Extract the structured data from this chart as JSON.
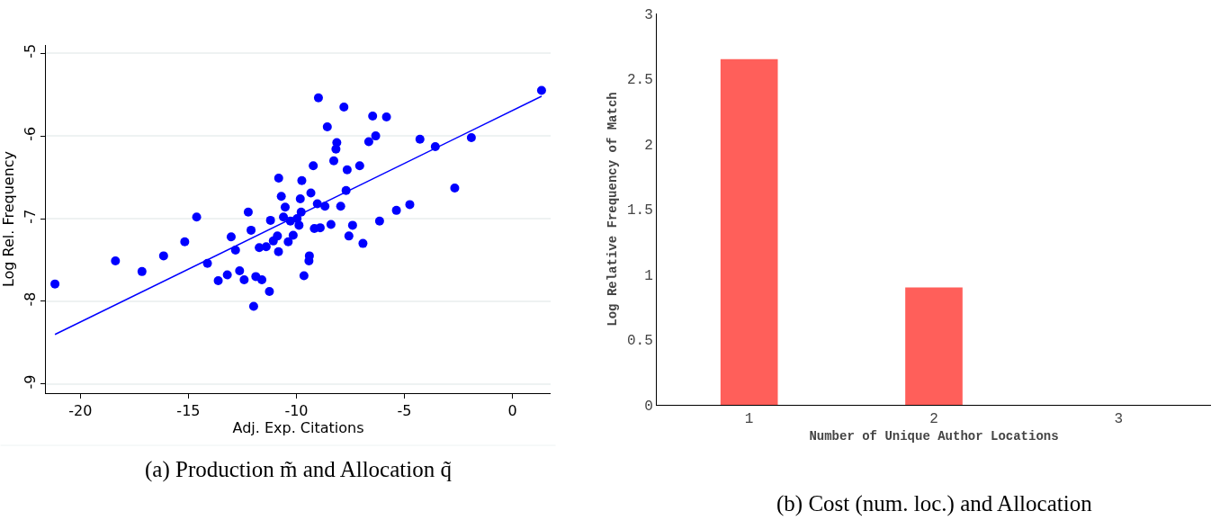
{
  "chart_data": [
    {
      "type": "scatter",
      "title": "(a) Production m̃ and Allocation q̃",
      "xlabel": "Adj. Exp. Citations",
      "ylabel": "Log Rel. Frequency",
      "xlim": [
        -21.6,
        1.77
      ],
      "ylim": [
        -9.11,
        -4.9
      ],
      "xticks": [
        -20,
        -15,
        -10,
        -5,
        0
      ],
      "yticks": [
        -9,
        -8,
        -7,
        -6,
        -5
      ],
      "grid": "y",
      "marker": "circle",
      "series": [
        {
          "color": "#0000ff",
          "x": [
            -21.18,
            -18.38,
            -17.15,
            -16.15,
            -15.17,
            -14.62,
            -14.12,
            -13.62,
            -13.2,
            -13.02,
            -12.82,
            -12.63,
            -12.42,
            -12.23,
            -12.1,
            -11.98,
            -11.88,
            -11.72,
            -11.6,
            -11.4,
            -11.25,
            -11.2,
            -11.07,
            -10.88,
            -10.83,
            -10.82,
            -10.7,
            -10.6,
            -10.52,
            -10.38,
            -10.28,
            -10.15,
            -9.97,
            -9.88,
            -9.82,
            -9.78,
            -9.75,
            -9.65,
            -9.42,
            -9.4,
            -9.33,
            -9.22,
            -9.17,
            -9.03,
            -8.98,
            -8.9,
            -8.68,
            -8.57,
            -8.4,
            -8.27,
            -8.17,
            -8.13,
            -7.95,
            -7.8,
            -7.7,
            -7.65,
            -7.57,
            -7.4,
            -7.07,
            -6.92,
            -6.65,
            -6.47,
            -6.33,
            -6.15,
            -5.83,
            -5.37,
            -4.75,
            -4.28,
            -3.57,
            -2.67,
            -1.9,
            1.35
          ],
          "values": [
            -7.79,
            -7.51,
            -7.64,
            -7.45,
            -7.28,
            -6.98,
            -7.54,
            -7.75,
            -7.68,
            -7.22,
            -7.38,
            -7.63,
            -7.74,
            -6.92,
            -7.14,
            -8.06,
            -7.7,
            -7.35,
            -7.74,
            -7.34,
            -7.88,
            -7.02,
            -7.27,
            -7.21,
            -7.4,
            -6.51,
            -6.73,
            -6.98,
            -6.86,
            -7.28,
            -7.03,
            -7.2,
            -7.0,
            -7.08,
            -6.76,
            -6.92,
            -6.54,
            -7.69,
            -7.51,
            -7.45,
            -6.69,
            -6.36,
            -7.12,
            -6.82,
            -5.54,
            -7.11,
            -6.85,
            -5.89,
            -7.07,
            -6.3,
            -6.16,
            -6.08,
            -6.85,
            -5.65,
            -6.66,
            -6.41,
            -7.21,
            -7.08,
            -6.36,
            -7.3,
            -6.07,
            -5.76,
            -6.0,
            -7.03,
            -5.77,
            -6.9,
            -6.83,
            -6.04,
            -6.13,
            -6.63,
            -6.02,
            -5.45
          ]
        },
        {
          "type": "line",
          "marker": "none",
          "color": "#0000ff",
          "x": [
            -21.18,
            1.35
          ],
          "values": [
            -8.4,
            -5.52
          ]
        }
      ]
    },
    {
      "type": "bar",
      "title": "(b) Cost (num. loc.) and Allocation",
      "xlabel": "Number of Unique Author Locations",
      "ylabel": "Log Relative Frequency of Match",
      "categories": [
        "1",
        "2",
        "3"
      ],
      "values": [
        2.65,
        0.9,
        0
      ],
      "color": "#ff5f5a",
      "ylim": [
        0,
        3
      ],
      "yticks": [
        0,
        0.5,
        1,
        1.5,
        2,
        2.5,
        3
      ],
      "grid": false
    }
  ]
}
